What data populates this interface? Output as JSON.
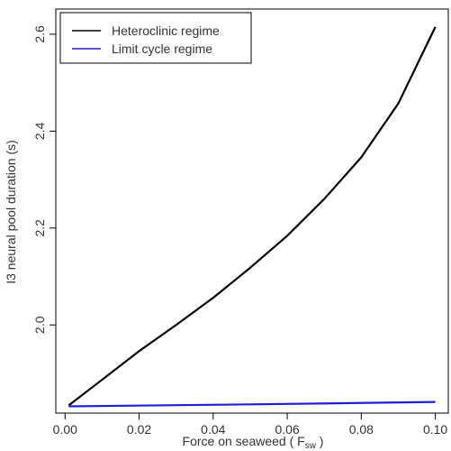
{
  "chart_data": {
    "type": "line",
    "xlabel": "Force on seaweed ( F",
    "xlabel_sub": "sw",
    "xlabel_end": " )",
    "ylabel": "I3 neural pool duration (s)",
    "xlim": [
      -0.0025,
      0.1035
    ],
    "ylim": [
      1.818,
      2.652
    ],
    "xticks": [
      "0.00",
      "0.02",
      "0.04",
      "0.06",
      "0.08",
      "0.10"
    ],
    "xtick_values": [
      0,
      0.02,
      0.04,
      0.06,
      0.08,
      0.1
    ],
    "yticks": [
      "2.0",
      "2.2",
      "2.4",
      "2.6"
    ],
    "ytick_values": [
      2.0,
      2.2,
      2.4,
      2.6
    ],
    "legend_position": "top-left",
    "series": [
      {
        "name": "Heteroclinic regime",
        "color": "#000000",
        "x": [
          0.001,
          0.01,
          0.02,
          0.03,
          0.04,
          0.05,
          0.06,
          0.07,
          0.08,
          0.09,
          0.1
        ],
        "y": [
          1.834,
          1.887,
          1.946,
          2.0,
          2.056,
          2.118,
          2.184,
          2.26,
          2.346,
          2.457,
          2.615
        ]
      },
      {
        "name": "Limit cycle regime",
        "color": "#1f1fd6",
        "x": [
          0.001,
          0.05,
          0.1
        ],
        "y": [
          1.832,
          1.836,
          1.841
        ]
      }
    ]
  }
}
